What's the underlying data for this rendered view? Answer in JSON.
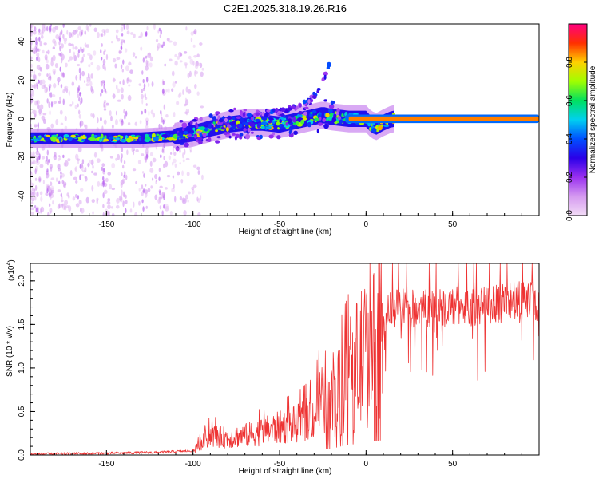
{
  "title": "C2E1.2025.318.19.26.R16",
  "chart_data": [
    {
      "type": "heatmap",
      "name": "spectrogram",
      "xlabel": "Height of straight line (km)",
      "ylabel": "Frequency (Hz)",
      "xlim": [
        -194,
        100
      ],
      "ylim": [
        -50,
        49
      ],
      "xticks": [
        -150,
        -100,
        -50,
        0,
        50
      ],
      "yticks": [
        -40,
        -20,
        0,
        20,
        40
      ],
      "main_track": [
        [
          -194,
          -10
        ],
        [
          -170,
          -10
        ],
        [
          -150,
          -10
        ],
        [
          -130,
          -10
        ],
        [
          -110,
          -9
        ],
        [
          -100,
          -7.5
        ],
        [
          -90,
          -5
        ],
        [
          -80,
          -3
        ],
        [
          -70,
          -2
        ],
        [
          -60,
          -2
        ],
        [
          -50,
          -3
        ],
        [
          -40,
          -1
        ],
        [
          -30,
          1
        ],
        [
          -25,
          2
        ],
        [
          -20,
          1
        ],
        [
          -10,
          0
        ],
        [
          0,
          0
        ],
        [
          3,
          -3
        ],
        [
          6,
          -4
        ],
        [
          10,
          -2
        ],
        [
          15,
          0
        ],
        [
          100,
          0
        ]
      ],
      "upper_track": [
        [
          -85,
          -2
        ],
        [
          -75,
          2
        ],
        [
          -60,
          3
        ],
        [
          -50,
          4
        ],
        [
          -40,
          6
        ],
        [
          -33,
          9
        ],
        [
          -28,
          14
        ],
        [
          -25,
          19
        ],
        [
          -22,
          26
        ],
        [
          -20,
          33
        ]
      ],
      "colorbar": {
        "label": "Normalized spectral amplitude",
        "range": [
          0.0,
          1.0
        ],
        "ticks": [
          "0.0",
          "0.2",
          "0.4",
          "0.6",
          "0.8"
        ],
        "tick_values": [
          0.0,
          0.2,
          0.4,
          0.6,
          0.8
        ],
        "colors": [
          "#f2dcf6",
          "#d59af0",
          "#9a30f0",
          "#2a00e8",
          "#0050ff",
          "#00d0f0",
          "#00e060",
          "#a0ff00",
          "#ffd000",
          "#ff3000",
          "#ff0080"
        ]
      }
    },
    {
      "type": "line",
      "name": "snr",
      "xlabel": "Height of straight line (km)",
      "ylabel": "SNR (10 * v/v)",
      "multiplier_label": "(x10",
      "multiplier_exp": "4",
      "xlim": [
        -194,
        100
      ],
      "ylim": [
        0.0,
        2.2
      ],
      "xticks": [
        -150,
        -100,
        -50,
        0,
        50
      ],
      "yticks": [
        "0.0",
        "0.5",
        "1.0",
        "1.5",
        "2.0"
      ],
      "ytick_values": [
        0.0,
        0.5,
        1.0,
        1.5,
        2.0
      ],
      "color": "#ee3333",
      "series": [
        {
          "name": "SNR",
          "envelope": [
            [
              -194,
              0.01
            ],
            [
              -150,
              0.02
            ],
            [
              -120,
              0.03
            ],
            [
              -110,
              0.04
            ],
            [
              -100,
              0.05
            ],
            [
              -95,
              0.15
            ],
            [
              -90,
              0.25
            ],
            [
              -80,
              0.22
            ],
            [
              -70,
              0.25
            ],
            [
              -60,
              0.3
            ],
            [
              -50,
              0.35
            ],
            [
              -40,
              0.4
            ],
            [
              -30,
              0.5
            ],
            [
              -25,
              0.8
            ],
            [
              -20,
              0.7
            ],
            [
              -15,
              1.0
            ],
            [
              -10,
              1.2
            ],
            [
              -5,
              1.3
            ],
            [
              0,
              1.45
            ],
            [
              5,
              1.6
            ],
            [
              10,
              1.75
            ],
            [
              15,
              1.8
            ],
            [
              20,
              1.85
            ],
            [
              30,
              1.8
            ],
            [
              40,
              1.85
            ],
            [
              50,
              1.85
            ],
            [
              60,
              1.85
            ],
            [
              70,
              1.85
            ],
            [
              80,
              1.9
            ],
            [
              90,
              1.9
            ],
            [
              100,
              1.92
            ]
          ]
        }
      ]
    }
  ]
}
